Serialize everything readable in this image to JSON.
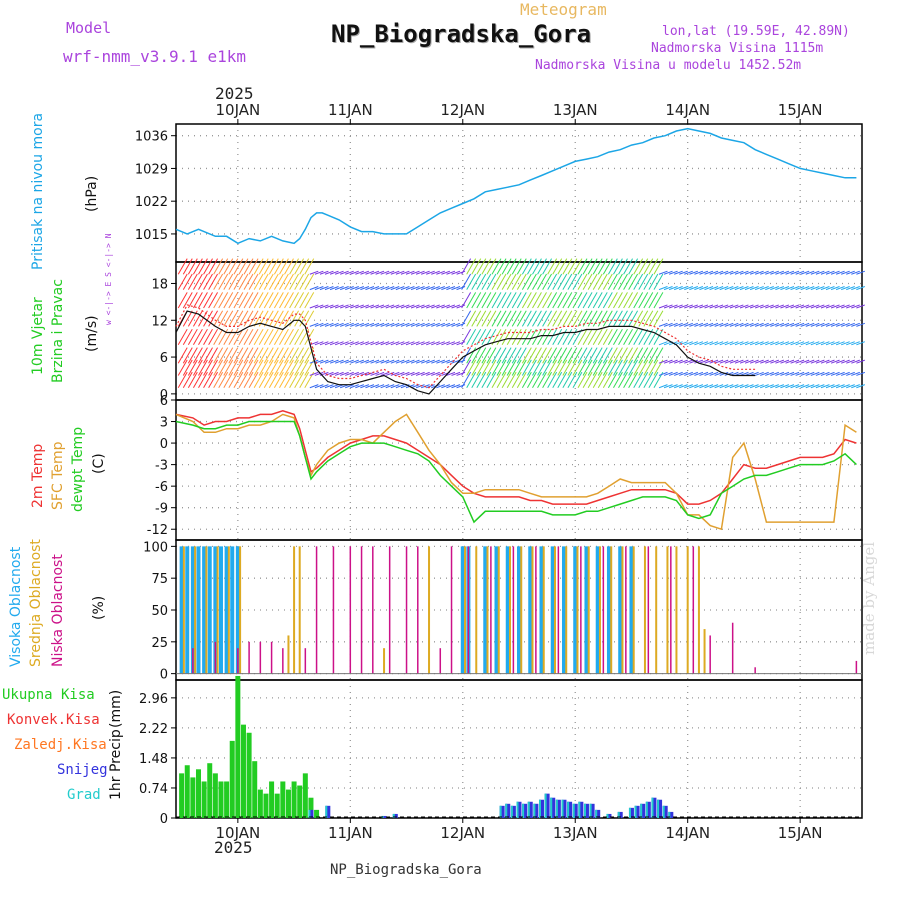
{
  "header": {
    "model_label": "Model",
    "model_name": "wrf-nmm_v3.9.1 e1km",
    "meteogram_label": "Meteogram",
    "station": "NP_Biogradska_Gora",
    "lonlat": "lon,lat (19.59E, 42.89N)",
    "elevation": "Nadmorska Visina 1115m",
    "model_elevation": "Nadmorska Visina u modelu 1452.52m",
    "footer_station": "NP_Biogradska_Gora",
    "watermark": "made by Angel",
    "year": "2025"
  },
  "colors": {
    "pressure": "#1ca6e6",
    "t2m": "#ee3333",
    "sfc": "#e0a030",
    "dewp": "#22cc22",
    "high_cloud": "#22aaee",
    "mid_cloud": "#ddaa22",
    "low_cloud": "#cc1188",
    "total_precip": "#22cc22",
    "conv_precip": "#ee3333",
    "frozen_precip": "#ff7722",
    "snow": "#3333dd",
    "graupel": "#22cccc",
    "ylabel_purple": "#aa44dd"
  },
  "chart_data": [
    {
      "type": "line",
      "id": "pressure",
      "ylabel": "Pritisak na nivou mora",
      "units": "(hPa)",
      "x_tick_labels": [
        "10JAN",
        "11JAN",
        "12JAN",
        "13JAN",
        "14JAN",
        "15JAN"
      ],
      "yticks": [
        1015,
        1022,
        1029,
        1036
      ],
      "ylim": [
        1009,
        1038.5
      ],
      "x_range_days": [
        -0.55,
        5.55
      ],
      "series": [
        {
          "x": [
            -0.55,
            -0.45,
            -0.35,
            -0.2,
            -0.1,
            0.0,
            0.1,
            0.2,
            0.3,
            0.4,
            0.5,
            0.55,
            0.6,
            0.65,
            0.7,
            0.75,
            0.8,
            0.9,
            1.0,
            1.1,
            1.2,
            1.3,
            1.4,
            1.5,
            1.6,
            1.7,
            1.8,
            1.9,
            2.0,
            2.1,
            2.2,
            2.3,
            2.4,
            2.5,
            2.6,
            2.7,
            2.8,
            2.9,
            3.0,
            3.1,
            3.2,
            3.3,
            3.4,
            3.5,
            3.6,
            3.7,
            3.8,
            3.9,
            4.0,
            4.1,
            4.2,
            4.3,
            4.4,
            4.5,
            4.6,
            4.7,
            4.8,
            4.9,
            5.0,
            5.1,
            5.2,
            5.3,
            5.4,
            5.5
          ],
          "y": [
            1016,
            1015,
            1016,
            1014.5,
            1014.5,
            1013,
            1014,
            1013.5,
            1014.5,
            1013.5,
            1013,
            1014,
            1016,
            1018.5,
            1019.5,
            1019.5,
            1019,
            1018,
            1016.5,
            1015.5,
            1015.5,
            1015,
            1015,
            1015,
            1016.5,
            1018,
            1019.5,
            1020.5,
            1021.5,
            1022.5,
            1024,
            1024.5,
            1025,
            1025.5,
            1026.5,
            1027.5,
            1028.5,
            1029.5,
            1030.5,
            1031,
            1031.5,
            1032.5,
            1033,
            1034,
            1034.5,
            1035.5,
            1036,
            1037,
            1037.5,
            1037,
            1036.5,
            1035.5,
            1035,
            1034.5,
            1033,
            1032,
            1031,
            1030,
            1029,
            1028.5,
            1028,
            1027.5,
            1027,
            1027
          ]
        }
      ]
    },
    {
      "type": "line",
      "id": "wind",
      "ylabel": "10m Vjetar",
      "ylabel2": "Brzina i Pravac",
      "units": "(m/s)",
      "compass_label": "w <-|-> E   S <-|-> N",
      "yticks": [
        0,
        6,
        12,
        18
      ],
      "ylim": [
        -1,
        21.5
      ],
      "series": [
        {
          "name": "speed",
          "x": [
            -0.55,
            -0.45,
            -0.35,
            -0.2,
            -0.1,
            0.0,
            0.1,
            0.2,
            0.3,
            0.4,
            0.5,
            0.55,
            0.6,
            0.7,
            0.8,
            0.9,
            1.0,
            1.1,
            1.2,
            1.3,
            1.4,
            1.5,
            1.6,
            1.7,
            1.8,
            1.9,
            2.0,
            2.1,
            2.2,
            2.3,
            2.4,
            2.5,
            2.6,
            2.7,
            2.8,
            2.9,
            3.0,
            3.1,
            3.2,
            3.3,
            3.4,
            3.5,
            3.6,
            3.7,
            3.8,
            3.9,
            4.0,
            4.1,
            4.2,
            4.3,
            4.4,
            4.5,
            4.6
          ],
          "y": [
            10,
            13.5,
            13,
            11,
            10,
            10,
            11,
            11.5,
            11,
            10.5,
            12,
            12,
            11,
            4,
            2,
            1.5,
            1.5,
            2,
            2.5,
            3,
            2,
            1.5,
            0.5,
            0,
            2,
            4,
            6,
            7,
            8,
            8.5,
            9,
            9,
            9,
            9.5,
            9.5,
            10,
            10,
            10.5,
            10.5,
            11,
            11,
            11,
            10.5,
            10,
            9,
            8,
            6,
            5,
            4.5,
            3.5,
            3,
            3,
            3
          ]
        }
      ]
    },
    {
      "type": "line",
      "id": "temperature",
      "ylabel": "2m Temp",
      "ylabel2": "SFC Temp",
      "ylabel3": "dewpt Temp",
      "units": "(C)",
      "yticks": [
        -12,
        -9,
        -6,
        -3,
        0,
        3,
        6
      ],
      "ylim": [
        -13.5,
        6
      ],
      "series": [
        {
          "name": "2m Temp",
          "x": [
            -0.55,
            -0.4,
            -0.3,
            -0.2,
            -0.1,
            0.0,
            0.1,
            0.2,
            0.3,
            0.4,
            0.5,
            0.55,
            0.6,
            0.65,
            0.7,
            0.8,
            0.9,
            1.0,
            1.1,
            1.2,
            1.3,
            1.4,
            1.5,
            1.6,
            1.7,
            1.8,
            1.9,
            2.0,
            2.1,
            2.2,
            2.3,
            2.4,
            2.5,
            2.6,
            2.7,
            2.8,
            2.9,
            3.0,
            3.1,
            3.2,
            3.3,
            3.4,
            3.5,
            3.6,
            3.7,
            3.8,
            3.9,
            4.0,
            4.1,
            4.2,
            4.3,
            4.4,
            4.5,
            4.6,
            4.7,
            4.8,
            4.9,
            5.0,
            5.1,
            5.2,
            5.3,
            5.4,
            5.5
          ],
          "y": [
            4,
            3.5,
            2.5,
            3,
            3,
            3.5,
            3.5,
            4,
            4,
            4.5,
            4,
            2,
            -1,
            -4,
            -3.5,
            -2,
            -1,
            0,
            0.5,
            1,
            1,
            0.5,
            0,
            -1,
            -2,
            -3,
            -4.5,
            -6,
            -7,
            -7.5,
            -7.5,
            -7.5,
            -7.5,
            -8,
            -8,
            -8.5,
            -8.5,
            -8.5,
            -8.5,
            -8,
            -7.5,
            -7,
            -6.5,
            -6.5,
            -6.5,
            -6.5,
            -7,
            -8.5,
            -8.5,
            -8,
            -7,
            -5,
            -3,
            -3.5,
            -3.5,
            -3,
            -2.5,
            -2,
            -2,
            -2,
            -1.5,
            0.5,
            0
          ]
        },
        {
          "name": "SFC Temp",
          "x": [
            -0.55,
            -0.4,
            -0.3,
            -0.2,
            -0.1,
            0.0,
            0.1,
            0.2,
            0.3,
            0.4,
            0.5,
            0.55,
            0.6,
            0.65,
            0.7,
            0.8,
            0.9,
            1.0,
            1.1,
            1.2,
            1.3,
            1.4,
            1.5,
            1.6,
            1.7,
            1.8,
            1.9,
            2.0,
            2.1,
            2.2,
            2.3,
            2.4,
            2.5,
            2.6,
            2.7,
            2.8,
            2.9,
            3.0,
            3.1,
            3.2,
            3.3,
            3.4,
            3.5,
            3.6,
            3.7,
            3.8,
            3.9,
            4.0,
            4.1,
            4.2,
            4.3,
            4.4,
            4.5,
            4.6,
            4.7,
            4.8,
            4.9,
            5.0,
            5.1,
            5.2,
            5.3,
            5.4,
            5.5
          ],
          "y": [
            4,
            3,
            1.5,
            1.5,
            2,
            2,
            2.5,
            2.5,
            3,
            4,
            3.5,
            1,
            -2,
            -4.5,
            -3,
            -1,
            0,
            0.5,
            0.5,
            0,
            1.5,
            3,
            4,
            1.5,
            -1,
            -3,
            -5.5,
            -7,
            -7,
            -6.5,
            -6.5,
            -6.5,
            -6.5,
            -7,
            -7.5,
            -7.5,
            -7.5,
            -7.5,
            -7.5,
            -7,
            -6,
            -5,
            -5.5,
            -5.5,
            -5.5,
            -5.5,
            -7,
            -10,
            -10,
            -11.5,
            -12,
            -2,
            0,
            -5,
            -11,
            -11,
            -11,
            -11,
            -11,
            -11,
            -11,
            2.5,
            1.5
          ]
        },
        {
          "name": "dewpt Temp",
          "x": [
            -0.55,
            -0.4,
            -0.3,
            -0.2,
            -0.1,
            0.0,
            0.1,
            0.2,
            0.3,
            0.4,
            0.5,
            0.55,
            0.6,
            0.65,
            0.7,
            0.8,
            0.9,
            1.0,
            1.1,
            1.2,
            1.3,
            1.4,
            1.5,
            1.6,
            1.7,
            1.8,
            1.9,
            2.0,
            2.1,
            2.2,
            2.3,
            2.4,
            2.5,
            2.6,
            2.7,
            2.8,
            2.9,
            3.0,
            3.1,
            3.2,
            3.3,
            3.4,
            3.5,
            3.6,
            3.7,
            3.8,
            3.9,
            4.0,
            4.1,
            4.2,
            4.3,
            4.4,
            4.5,
            4.6,
            4.7,
            4.8,
            4.9,
            5.0,
            5.1,
            5.2,
            5.3,
            5.4,
            5.5
          ],
          "y": [
            3,
            2.5,
            2,
            2,
            2.5,
            2.5,
            3,
            3,
            3,
            3,
            3,
            1,
            -2,
            -5,
            -4,
            -2.5,
            -1.5,
            -0.5,
            0,
            0,
            0,
            -0.5,
            -1,
            -1.5,
            -2.5,
            -4.5,
            -6,
            -7.5,
            -11,
            -9.5,
            -9.5,
            -9.5,
            -9.5,
            -9.5,
            -9.5,
            -10,
            -10,
            -10,
            -9.5,
            -9.5,
            -9,
            -8.5,
            -8,
            -7.5,
            -7.5,
            -7.5,
            -8,
            -10,
            -10.5,
            -10,
            -7,
            -6,
            -5,
            -4.5,
            -4.5,
            -4,
            -3.5,
            -3,
            -3,
            -3,
            -2.5,
            -1.5,
            -3
          ]
        }
      ]
    },
    {
      "type": "bar",
      "id": "clouds",
      "ylabel": "Visoka Oblacnost",
      "ylabel2": "Srednja Oblacnost",
      "ylabel3": "Niska Oblacnost",
      "units": "(%)",
      "yticks": [
        0,
        25,
        50,
        75,
        100
      ],
      "ylim": [
        -5,
        105
      ],
      "bars": [
        {
          "series": "high",
          "x": [
            -0.5,
            -0.45,
            -0.4,
            -0.35,
            -0.3,
            -0.25,
            -0.2,
            -0.15,
            -0.1,
            -0.05,
            0.0,
            2.0,
            2.05,
            2.2,
            2.3,
            2.4,
            2.5,
            2.6,
            2.7,
            2.8,
            2.9,
            3.0,
            3.1,
            3.2,
            3.3,
            3.4,
            3.5
          ],
          "v": [
            100,
            100,
            100,
            100,
            100,
            100,
            100,
            100,
            100,
            100,
            100,
            100,
            100,
            100,
            100,
            100,
            100,
            100,
            100,
            100,
            100,
            100,
            100,
            100,
            100,
            100,
            100
          ]
        },
        {
          "series": "mid",
          "x": [
            -0.48,
            -0.38,
            -0.28,
            -0.18,
            -0.08,
            0.02,
            0.45,
            0.5,
            0.55,
            1.3,
            1.7,
            2.02,
            2.12,
            2.22,
            2.32,
            2.42,
            2.52,
            2.62,
            2.72,
            2.82,
            2.92,
            3.02,
            3.12,
            3.22,
            3.32,
            3.42,
            3.52,
            3.62,
            3.72,
            3.82,
            3.9,
            4.0,
            4.1,
            4.15
          ],
          "v": [
            100,
            100,
            100,
            100,
            100,
            100,
            30,
            100,
            100,
            20,
            100,
            100,
            100,
            100,
            100,
            100,
            100,
            100,
            100,
            100,
            100,
            100,
            100,
            100,
            100,
            100,
            100,
            100,
            100,
            100,
            100,
            100,
            100,
            35
          ]
        },
        {
          "series": "low",
          "x": [
            -0.4,
            -0.2,
            0.0,
            0.1,
            0.2,
            0.3,
            0.4,
            0.6,
            0.7,
            0.85,
            1.0,
            1.1,
            1.2,
            1.35,
            1.5,
            1.6,
            1.8,
            1.9,
            2.05,
            2.25,
            2.45,
            2.65,
            2.85,
            3.05,
            3.25,
            3.45,
            3.65,
            3.85,
            4.05,
            4.2,
            4.4,
            4.6,
            5.5
          ],
          "v": [
            20,
            25,
            20,
            25,
            25,
            25,
            20,
            20,
            100,
            100,
            100,
            100,
            100,
            100,
            100,
            100,
            20,
            100,
            100,
            100,
            100,
            100,
            100,
            100,
            100,
            100,
            100,
            100,
            100,
            30,
            40,
            5,
            10
          ]
        }
      ]
    },
    {
      "type": "bar",
      "id": "precip",
      "ylabel": "1hr Precip",
      "units": "(mm)",
      "legend": [
        "Ukupna Kisa",
        "Konvek.Kisa",
        "Zaledj.Kisa",
        "Snijeg",
        "Grad"
      ],
      "yticks": [
        0,
        0.74,
        1.48,
        2.22,
        2.96
      ],
      "ytick_labels": [
        "0",
        "0.74",
        "1.48",
        "2.22",
        "2.96"
      ],
      "ylim": [
        0,
        3.4
      ],
      "bars": [
        {
          "series": "total",
          "x": [
            -0.5,
            -0.45,
            -0.4,
            -0.35,
            -0.3,
            -0.25,
            -0.2,
            -0.15,
            -0.1,
            -0.05,
            0.0,
            0.05,
            0.1,
            0.15,
            0.2,
            0.25,
            0.3,
            0.35,
            0.4,
            0.45,
            0.5,
            0.55,
            0.6,
            0.65,
            0.7
          ],
          "v": [
            1.1,
            1.3,
            1.0,
            1.2,
            0.9,
            1.35,
            1.1,
            0.9,
            0.9,
            1.9,
            3.5,
            2.3,
            2.1,
            1.4,
            0.7,
            0.6,
            0.9,
            0.6,
            0.9,
            0.7,
            0.9,
            0.8,
            1.1,
            0.5,
            0.2
          ]
        },
        {
          "series": "snow",
          "x": [
            0.65,
            0.8,
            1.3,
            1.4,
            2.35,
            2.4,
            2.45,
            2.5,
            2.55,
            2.6,
            2.65,
            2.7,
            2.75,
            2.8,
            2.85,
            2.9,
            2.95,
            3.0,
            3.05,
            3.1,
            3.15,
            3.2,
            3.3,
            3.4,
            3.5,
            3.55,
            3.6,
            3.65,
            3.7,
            3.75,
            3.8,
            3.85
          ],
          "v": [
            0.2,
            0.3,
            0.05,
            0.1,
            0.3,
            0.35,
            0.3,
            0.4,
            0.35,
            0.4,
            0.35,
            0.45,
            0.6,
            0.5,
            0.45,
            0.45,
            0.4,
            0.35,
            0.4,
            0.35,
            0.35,
            0.2,
            0.1,
            0.15,
            0.25,
            0.3,
            0.35,
            0.4,
            0.5,
            0.45,
            0.3,
            0.15
          ]
        }
      ]
    }
  ]
}
